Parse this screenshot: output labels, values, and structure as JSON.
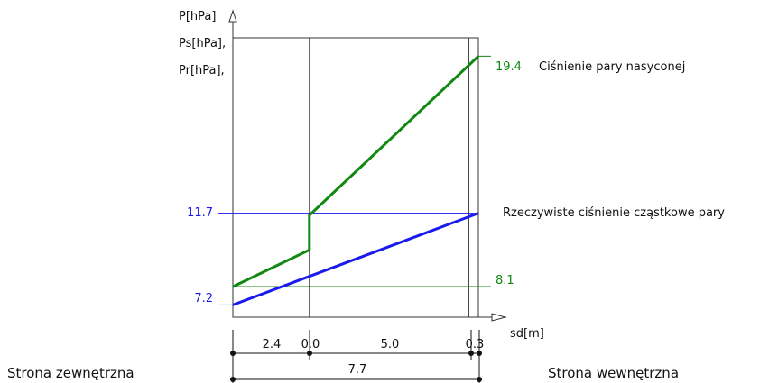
{
  "chart_data": {
    "type": "line",
    "y_axis_labels": [
      "P[hPa]",
      "Ps[hPa],",
      "Pr[hPa],"
    ],
    "xlabel": "sd[m]",
    "layers_sd": [
      "2.4",
      "0.0",
      "5.0",
      "0.3"
    ],
    "layer_boundaries_sd": [
      0,
      2.4,
      2.4,
      7.4,
      7.7
    ],
    "total_sd": "7.7",
    "series": [
      {
        "name": "Ciśnienie pary nasyconej",
        "color": "#118811",
        "x": [
          0,
          2.4,
          2.4,
          7.7
        ],
        "y": [
          8.1,
          9.9,
          11.6,
          19.4
        ],
        "end_label": "19.4"
      },
      {
        "name": "Rzeczywiste ciśnienie cząstkowe pary",
        "color": "#1a1aee",
        "x": [
          0,
          7.7
        ],
        "y": [
          7.2,
          11.7
        ],
        "start_label": "7.2",
        "end_label": "11.7"
      }
    ],
    "marked_values": [
      {
        "label": "11.7",
        "color": "#1a1aee"
      },
      {
        "label": "8.1",
        "color": "#118811"
      }
    ],
    "ylim": [
      6.6,
      20.3
    ],
    "xlim": [
      0,
      7.7
    ]
  },
  "sides": {
    "outside": "Strona zewnętrzna",
    "inside": "Strona wewnętrzna"
  }
}
